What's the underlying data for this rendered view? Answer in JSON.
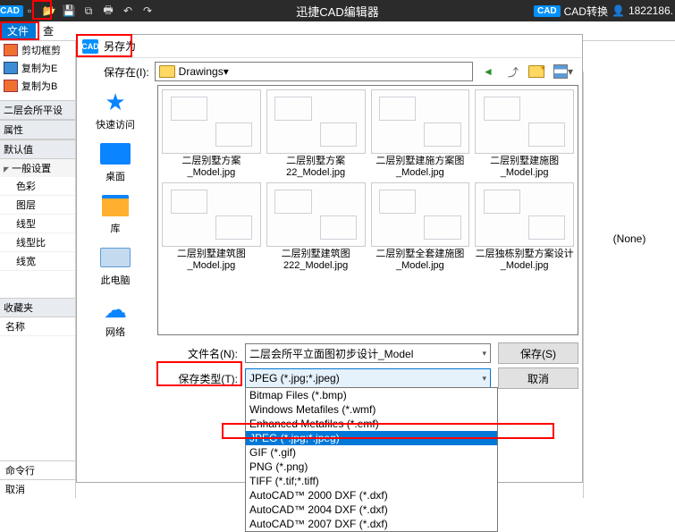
{
  "titlebar": {
    "title": "迅捷CAD编辑器",
    "convert": "CAD转换",
    "user": "1822186.",
    "cad_badge": "CAD"
  },
  "menubar": {
    "file": "文件",
    "view": "查"
  },
  "leftTools": {
    "cut": "剪切框剪",
    "copyE": "复制为E",
    "copyB": "复制为B"
  },
  "propPanel": {
    "tab": "二层会所平设",
    "props": "属性",
    "defaults": "默认值",
    "general": "一般设置",
    "rows": [
      "色彩",
      "图层",
      "线型",
      "线型比",
      "线宽"
    ],
    "favorites": "收藏夹",
    "name": "名称"
  },
  "cmd": {
    "line1": "命令行",
    "line2": "取消"
  },
  "dialog": {
    "title": "另存为",
    "saveIn": "保存在(I):",
    "location": "Drawings",
    "fileNameLabel": "文件名(N):",
    "fileNameValue": "二层会所平立面图初步设计_Model",
    "fileTypeLabel": "保存类型(T):",
    "fileTypeValue": "JPEG (*.jpg;*.jpeg)",
    "saveBtn": "保存(S)",
    "cancelBtn": "取消",
    "sidebar": [
      "快速访问",
      "桌面",
      "库",
      "此电脑",
      "网络"
    ],
    "files": [
      "二层别墅方案_Model.jpg",
      "二层别墅方案22_Model.jpg",
      "二层别墅建施方案图_Model.jpg",
      "二层别墅建施图_Model.jpg",
      "二层别墅建筑图_Model.jpg",
      "二层别墅建筑图222_Model.jpg",
      "二层别墅全套建施图_Model.jpg",
      "二层独栋别墅方案设计_Model.jpg"
    ],
    "dropdown": [
      "Bitmap Files (*.bmp)",
      "Windows Metafiles (*.wmf)",
      "Enhanced Metafiles (*.emf)",
      "JPEG (*.jpg;*.jpeg)",
      "GIF (*.gif)",
      "PNG (*.png)",
      "TIFF (*.tif;*.tiff)",
      "AutoCAD™ 2000 DXF (*.dxf)",
      "AutoCAD™ 2004 DXF (*.dxf)",
      "AutoCAD™ 2007 DXF (*.dxf)"
    ],
    "dropdownSelectedIndex": 3
  },
  "rightPanel": {
    "none": "(None)"
  },
  "colors": {
    "selection_bg": "#0078d7",
    "accent": "#0090ff",
    "highlight": "#ff0000"
  }
}
